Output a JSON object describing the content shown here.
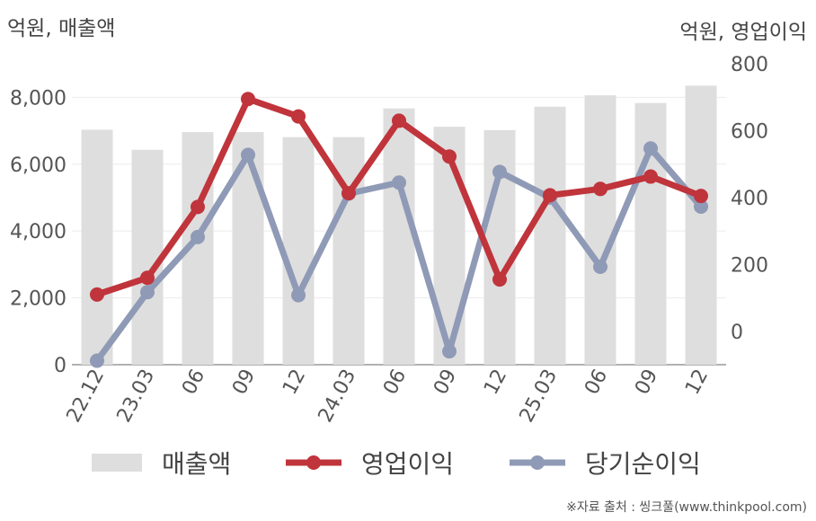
{
  "chart_data": {
    "type": "bar+line",
    "left_axis_unit": "억원, 매출액",
    "right_axis_unit": "억원, 영업이익",
    "categories": [
      "22.12",
      "23.03",
      "06",
      "09",
      "12",
      "24.03",
      "06",
      "09",
      "12",
      "25.03",
      "06",
      "09",
      "12"
    ],
    "left_axis": {
      "ticks": [
        0,
        2000,
        4000,
        6000,
        8000
      ],
      "tick_labels": [
        "0",
        "2,000",
        "4,000",
        "6,000",
        "8,000"
      ],
      "range": [
        0,
        9300
      ]
    },
    "right_axis": {
      "ticks": [
        0,
        200,
        400,
        600,
        800
      ],
      "tick_labels": [
        "0",
        "200",
        "400",
        "600",
        "800"
      ],
      "range": [
        -100,
        830
      ]
    },
    "series": [
      {
        "name": "매출액",
        "type": "bar",
        "axis": "left",
        "color": "#dedede",
        "values": [
          7030,
          6430,
          6960,
          6960,
          6810,
          6810,
          7670,
          7120,
          7020,
          7720,
          8060,
          7830,
          8350
        ]
      },
      {
        "name": "영업이익",
        "type": "line",
        "axis": "right",
        "color": "#c0343b",
        "values": [
          110,
          160,
          372,
          695,
          643,
          413,
          630,
          523,
          155,
          407,
          426,
          463,
          405
        ]
      },
      {
        "name": "당기순이익",
        "type": "line",
        "axis": "right",
        "color": "#8f9ab6",
        "values": [
          -88,
          117,
          282,
          528,
          108,
          412,
          445,
          -60,
          477,
          400,
          193,
          547,
          373
        ]
      }
    ],
    "grid": true,
    "legend_position": "bottom"
  },
  "source_text": "※자료 출처 : 씽크풀(www.thinkpool.com)"
}
